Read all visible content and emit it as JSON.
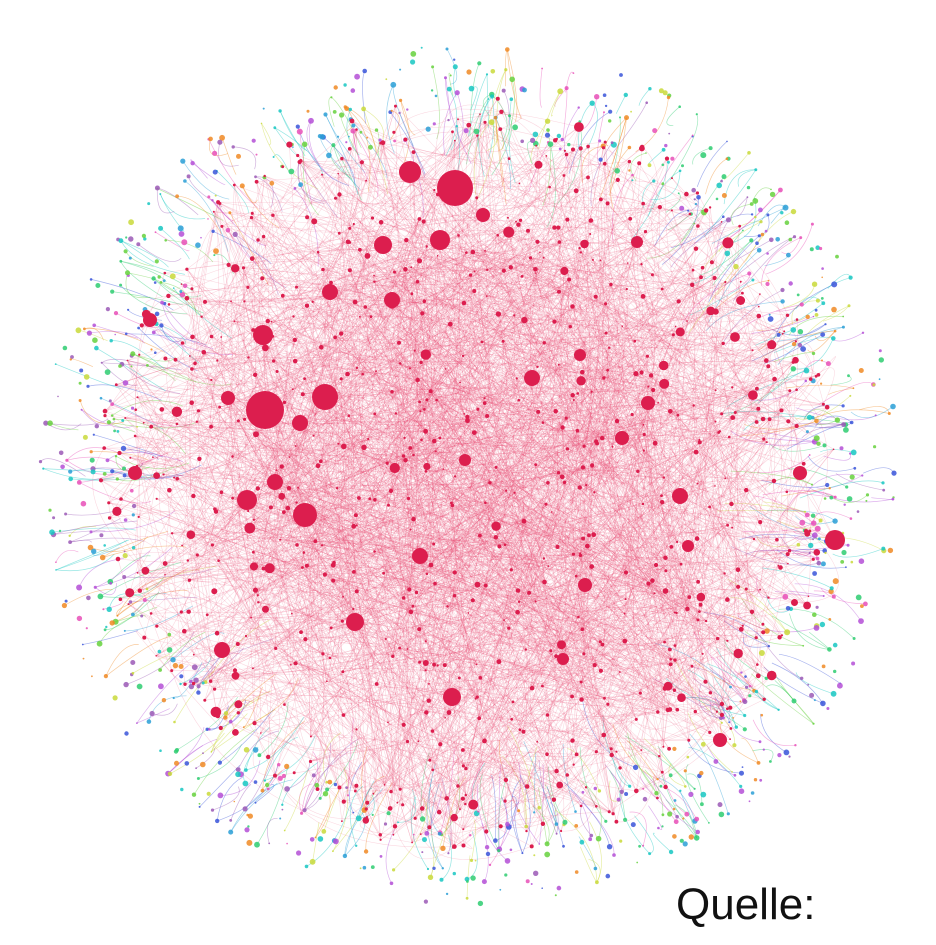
{
  "figure": {
    "source_label": "Quelle:"
  },
  "colors": {
    "background": "#ffffff",
    "core_nodes": "#dc1e4e",
    "core_edges": "#e8466e",
    "periphery": [
      "#2ecc71",
      "#3a55d9",
      "#17c7c2",
      "#b44fd6",
      "#c9d93a",
      "#e84fb7",
      "#f08a24",
      "#66d13d",
      "#2a9fd6",
      "#9b59b6"
    ]
  }
}
